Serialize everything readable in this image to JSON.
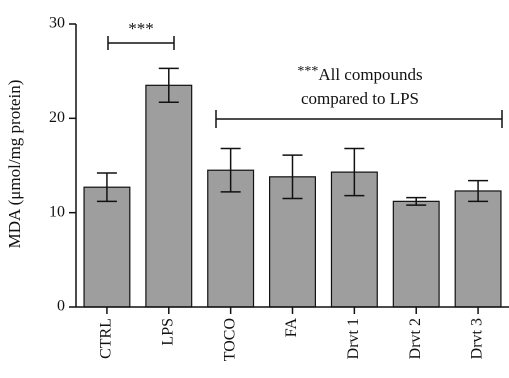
{
  "chart_data": {
    "type": "bar",
    "ylabel": "MDA (μmol/mg protein)",
    "ylim": [
      0,
      30
    ],
    "yticks": [
      "0",
      "10",
      "20",
      "30"
    ],
    "grid": false,
    "bar_color": "#9e9e9e",
    "categories": [
      "CTRL",
      "LPS",
      "TOCO",
      "FA",
      "Drvt 1",
      "Drvt 2",
      "Drvt 3"
    ],
    "values": [
      12.7,
      23.5,
      14.5,
      13.8,
      14.3,
      11.2,
      12.3
    ],
    "errors": [
      1.5,
      1.8,
      2.3,
      2.3,
      2.5,
      0.4,
      1.1
    ],
    "annotations": {
      "lps_vs_ctrl": "***",
      "compounds_stars": "***",
      "compounds_line1": "All compounds",
      "compounds_line2": "compared to LPS"
    }
  }
}
